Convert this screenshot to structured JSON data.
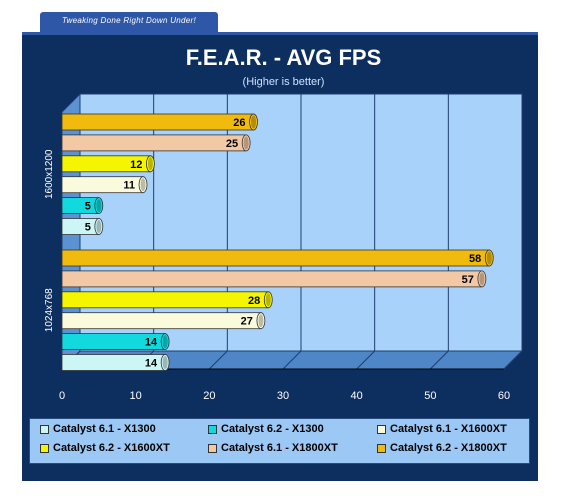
{
  "header": {
    "tab_label": "Tweaking Done Right Down Under!"
  },
  "chart_data": {
    "type": "bar",
    "orientation": "horizontal",
    "title": "F.E.A.R. - AVG FPS",
    "subtitle": "(Higher is better)",
    "categories": [
      "1600x1200",
      "1024x768"
    ],
    "xlim": [
      0,
      60
    ],
    "xticks": [
      0,
      10,
      20,
      30,
      40,
      50,
      60
    ],
    "grid": true,
    "legend_position": "bottom",
    "series": [
      {
        "name": "Catalyst 6.1 - X1300",
        "color": "#ccf5f5",
        "values": [
          5,
          14
        ]
      },
      {
        "name": "Catalyst 6.2 - X1300",
        "color": "#11d9de",
        "values": [
          5,
          14
        ]
      },
      {
        "name": "Catalyst 6.1 - X1600XT",
        "color": "#fafadc",
        "values": [
          11,
          27
        ]
      },
      {
        "name": "Catalyst 6.2 - X1600XT",
        "color": "#f5f500",
        "values": [
          12,
          28
        ]
      },
      {
        "name": "Catalyst 6.1 - X1800XT",
        "color": "#f2c9a4",
        "values": [
          25,
          57
        ]
      },
      {
        "name": "Catalyst 6.2 - X1800XT",
        "color": "#f0bb0c",
        "values": [
          26,
          58
        ]
      }
    ]
  }
}
